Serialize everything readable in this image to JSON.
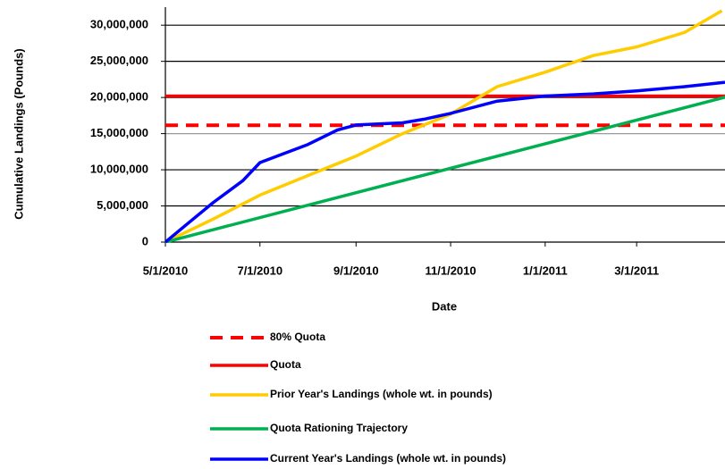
{
  "chart_data": {
    "type": "line",
    "y_label": "Cumulative Landings (Pounds)",
    "x_label": "Date",
    "xlim": [
      "5/1/2010",
      "4/27/2011"
    ],
    "xticks": [
      "5/1/2010",
      "7/1/2010",
      "9/1/2010",
      "11/1/2010",
      "1/1/2011",
      "3/1/2011"
    ],
    "ylim": [
      0,
      32000000
    ],
    "yticks": [
      0,
      {
        "value": 5000000,
        "label": "5,000,000"
      },
      {
        "value": 10000000,
        "label": "10,000,000"
      },
      {
        "value": 15000000,
        "label": "15,000,000"
      },
      {
        "value": 20000000,
        "label": "20,000,000"
      },
      {
        "value": 25000000,
        "label": "25,000,000"
      },
      {
        "value": 30000000,
        "label": "30,000,000"
      }
    ],
    "grid": true,
    "series": [
      {
        "name": "80% Quota",
        "color": "#ff0000",
        "dashed": true,
        "x": [
          "5/1/2010",
          "4/30/2011"
        ],
        "values": [
          16160000,
          16160000
        ]
      },
      {
        "name": "Quota",
        "color": "#ff0000",
        "x": [
          "5/1/2010",
          "4/30/2011"
        ],
        "values": [
          20200000,
          20200000
        ]
      },
      {
        "name": "Prior Year's Landings (whole wt. in pounds)",
        "color": "#ffcc00",
        "x": [
          "5/1/2010",
          "6/1/2010",
          "7/1/2010",
          "8/1/2010",
          "9/1/2010",
          "10/1/2010",
          "11/1/2010",
          "12/1/2010",
          "1/1/2011",
          "2/1/2011",
          "3/1/2011",
          "4/1/2011",
          "4/25/2011"
        ],
        "values": [
          0,
          3200000,
          6500000,
          9200000,
          11900000,
          15000000,
          17700000,
          21500000,
          23500000,
          25800000,
          27000000,
          29000000,
          32000000
        ]
      },
      {
        "name": "Quota Rationing Trajectory",
        "color": "#00b050",
        "x": [
          "5/1/2010",
          "4/30/2011"
        ],
        "values": [
          0,
          20200000
        ]
      },
      {
        "name": "Current Year's Landings (whole wt. in pounds)",
        "color": "#0000ff",
        "x": [
          "5/1/2010",
          "5/15/2010",
          "6/1/2010",
          "6/20/2010",
          "7/1/2010",
          "8/1/2010",
          "8/20/2010",
          "9/1/2010",
          "10/1/2010",
          "10/15/2010",
          "11/1/2010",
          "12/1/2010",
          "1/1/2011",
          "2/1/2011",
          "3/1/2011",
          "4/1/2011",
          "4/27/2011"
        ],
        "values": [
          0,
          2500000,
          5500000,
          8500000,
          11000000,
          13500000,
          15500000,
          16200000,
          16500000,
          17000000,
          17800000,
          19500000,
          20200000,
          20500000,
          20900000,
          21500000,
          22100000
        ]
      }
    ]
  }
}
